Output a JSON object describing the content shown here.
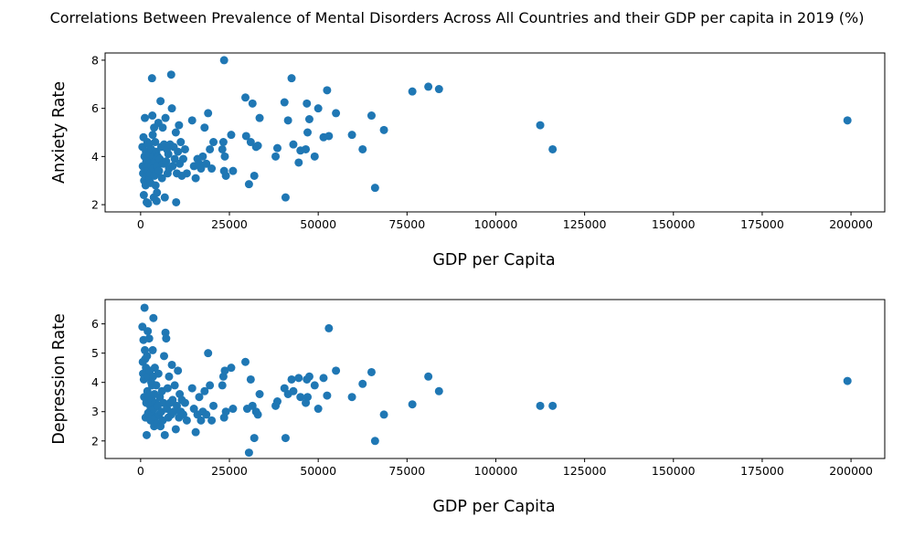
{
  "title": "Correlations Between Prevalence of Mental Disorders Across All Countries and their GDP per capita in 2019 (%)",
  "colors": {
    "marker": "#1f77b4",
    "axis": "#000000",
    "background": "#ffffff"
  },
  "chart_data": [
    {
      "type": "scatter",
      "xlabel": "GDP per Capita",
      "ylabel": "Anxiety Rate",
      "xlim": [
        -10000,
        209500
      ],
      "ylim": [
        1.7,
        8.3
      ],
      "xticks": [
        0,
        25000,
        50000,
        75000,
        100000,
        125000,
        150000,
        175000,
        200000
      ],
      "yticks": [
        2,
        4,
        6,
        8
      ],
      "grid": false,
      "legend": "none",
      "series": [
        {
          "points": [
            [
              500,
              4.4
            ],
            [
              600,
              3.6
            ],
            [
              700,
              3.3
            ],
            [
              800,
              4.8
            ],
            [
              900,
              2.4
            ],
            [
              1000,
              3.0
            ],
            [
              1100,
              4.0
            ],
            [
              1200,
              5.6
            ],
            [
              1300,
              3.5
            ],
            [
              1400,
              2.8
            ],
            [
              1500,
              4.2
            ],
            [
              1600,
              3.8
            ],
            [
              1700,
              2.1
            ],
            [
              1800,
              3.2
            ],
            [
              1900,
              4.6
            ],
            [
              2000,
              3.9
            ],
            [
              2100,
              2.05
            ],
            [
              2200,
              3.4
            ],
            [
              2300,
              4.5
            ],
            [
              2400,
              3.7
            ],
            [
              2500,
              3.1
            ],
            [
              2600,
              4.1
            ],
            [
              2700,
              3.3
            ],
            [
              2800,
              2.9
            ],
            [
              3000,
              4.3
            ],
            [
              3100,
              3.6
            ],
            [
              3200,
              7.25
            ],
            [
              3300,
              5.7
            ],
            [
              3400,
              4.9
            ],
            [
              3500,
              3.5
            ],
            [
              3600,
              4.0
            ],
            [
              3700,
              2.3
            ],
            [
              3800,
              5.2
            ],
            [
              3900,
              3.2
            ],
            [
              4000,
              3.8
            ],
            [
              4100,
              4.6
            ],
            [
              4200,
              2.8
            ],
            [
              4300,
              3.3
            ],
            [
              4400,
              4.2
            ],
            [
              4500,
              2.15
            ],
            [
              4600,
              2.5
            ],
            [
              4700,
              3.6
            ],
            [
              4800,
              4.0
            ],
            [
              5000,
              5.4
            ],
            [
              5200,
              3.4
            ],
            [
              5400,
              3.9
            ],
            [
              5600,
              6.3
            ],
            [
              5800,
              4.4
            ],
            [
              6000,
              3.1
            ],
            [
              6200,
              5.2
            ],
            [
              6400,
              3.7
            ],
            [
              6600,
              4.5
            ],
            [
              6800,
              2.3
            ],
            [
              7000,
              5.6
            ],
            [
              7200,
              3.8
            ],
            [
              7400,
              4.3
            ],
            [
              7600,
              3.3
            ],
            [
              7800,
              4.1
            ],
            [
              8000,
              3.5
            ],
            [
              8300,
              4.5
            ],
            [
              8600,
              7.4
            ],
            [
              8800,
              6.0
            ],
            [
              9000,
              3.6
            ],
            [
              9300,
              4.4
            ],
            [
              9600,
              3.9
            ],
            [
              9900,
              5.0
            ],
            [
              10000,
              2.1
            ],
            [
              10200,
              3.3
            ],
            [
              10500,
              4.2
            ],
            [
              10800,
              5.3
            ],
            [
              11000,
              3.7
            ],
            [
              11300,
              4.6
            ],
            [
              11600,
              3.2
            ],
            [
              12000,
              3.9
            ],
            [
              12500,
              4.3
            ],
            [
              13000,
              3.3
            ],
            [
              14500,
              5.5
            ],
            [
              15000,
              3.6
            ],
            [
              15500,
              3.1
            ],
            [
              16000,
              3.9
            ],
            [
              16500,
              3.7
            ],
            [
              17000,
              3.5
            ],
            [
              17500,
              4.0
            ],
            [
              18000,
              5.2
            ],
            [
              18500,
              3.7
            ],
            [
              19000,
              5.8
            ],
            [
              19500,
              4.3
            ],
            [
              20000,
              3.5
            ],
            [
              20500,
              4.6
            ],
            [
              23000,
              4.3
            ],
            [
              23300,
              4.6
            ],
            [
              23500,
              3.4
            ],
            [
              23700,
              4.0
            ],
            [
              23500,
              8.0
            ],
            [
              24000,
              3.2
            ],
            [
              25500,
              4.9
            ],
            [
              26000,
              3.4
            ],
            [
              29500,
              6.45
            ],
            [
              29700,
              4.85
            ],
            [
              30500,
              2.85
            ],
            [
              31000,
              4.6
            ],
            [
              31500,
              6.2
            ],
            [
              32000,
              3.2
            ],
            [
              32500,
              4.4
            ],
            [
              33000,
              4.45
            ],
            [
              33500,
              5.6
            ],
            [
              38000,
              4.0
            ],
            [
              38500,
              4.35
            ],
            [
              40500,
              6.25
            ],
            [
              40800,
              2.3
            ],
            [
              41500,
              5.5
            ],
            [
              42500,
              7.25
            ],
            [
              43000,
              4.5
            ],
            [
              44500,
              3.75
            ],
            [
              45000,
              4.25
            ],
            [
              46500,
              4.3
            ],
            [
              46800,
              6.2
            ],
            [
              47000,
              5.0
            ],
            [
              47500,
              5.55
            ],
            [
              49000,
              4.0
            ],
            [
              50000,
              6.0
            ],
            [
              51500,
              4.8
            ],
            [
              52500,
              6.75
            ],
            [
              53000,
              4.85
            ],
            [
              55000,
              5.8
            ],
            [
              59500,
              4.9
            ],
            [
              62500,
              4.3
            ],
            [
              65000,
              5.7
            ],
            [
              66000,
              2.7
            ],
            [
              68500,
              5.1
            ],
            [
              76500,
              6.7
            ],
            [
              81000,
              6.9
            ],
            [
              84000,
              6.8
            ],
            [
              112500,
              5.3
            ],
            [
              116000,
              4.3
            ],
            [
              199000,
              5.5
            ]
          ]
        }
      ]
    },
    {
      "type": "scatter",
      "xlabel": "GDP per Capita",
      "ylabel": "Depression Rate",
      "xlim": [
        -10000,
        209500
      ],
      "ylim": [
        1.4,
        6.83
      ],
      "xticks": [
        0,
        25000,
        50000,
        75000,
        100000,
        125000,
        150000,
        175000,
        200000
      ],
      "yticks": [
        2,
        3,
        4,
        5,
        6
      ],
      "grid": false,
      "legend": "none",
      "series": [
        {
          "points": [
            [
              500,
              5.9
            ],
            [
              600,
              4.7
            ],
            [
              700,
              4.3
            ],
            [
              800,
              5.45
            ],
            [
              900,
              4.1
            ],
            [
              1000,
              3.5
            ],
            [
              1100,
              6.55
            ],
            [
              1200,
              5.1
            ],
            [
              1300,
              4.8
            ],
            [
              1400,
              2.8
            ],
            [
              1500,
              4.5
            ],
            [
              1600,
              3.3
            ],
            [
              1700,
              2.2
            ],
            [
              1800,
              4.9
            ],
            [
              1900,
              3.7
            ],
            [
              2000,
              5.75
            ],
            [
              2100,
              2.95
            ],
            [
              2200,
              4.2
            ],
            [
              2300,
              3.5
            ],
            [
              2400,
              5.5
            ],
            [
              2500,
              3.0
            ],
            [
              2600,
              4.4
            ],
            [
              2700,
              3.2
            ],
            [
              2800,
              2.7
            ],
            [
              3000,
              4.0
            ],
            [
              3100,
              3.4
            ],
            [
              3200,
              3.9
            ],
            [
              3300,
              2.9
            ],
            [
              3400,
              5.1
            ],
            [
              3500,
              4.2
            ],
            [
              3600,
              6.2
            ],
            [
              3700,
              3.1
            ],
            [
              3800,
              2.5
            ],
            [
              3900,
              3.6
            ],
            [
              4000,
              4.5
            ],
            [
              4100,
              2.8
            ],
            [
              4200,
              3.3
            ],
            [
              4400,
              3.9
            ],
            [
              4600,
              2.6
            ],
            [
              4800,
              3.2
            ],
            [
              5000,
              4.3
            ],
            [
              5200,
              2.9
            ],
            [
              5400,
              3.5
            ],
            [
              5600,
              2.5
            ],
            [
              5800,
              3.0
            ],
            [
              6000,
              3.7
            ],
            [
              6200,
              2.7
            ],
            [
              6400,
              3.3
            ],
            [
              6600,
              4.9
            ],
            [
              6800,
              2.2
            ],
            [
              7000,
              5.7
            ],
            [
              7200,
              5.5
            ],
            [
              7400,
              3.1
            ],
            [
              7600,
              3.8
            ],
            [
              7800,
              2.8
            ],
            [
              8000,
              4.2
            ],
            [
              8300,
              3.3
            ],
            [
              8600,
              2.9
            ],
            [
              8800,
              4.6
            ],
            [
              9000,
              3.4
            ],
            [
              9300,
              3.0
            ],
            [
              9600,
              3.9
            ],
            [
              9900,
              2.4
            ],
            [
              10200,
              3.2
            ],
            [
              10500,
              4.4
            ],
            [
              10800,
              2.8
            ],
            [
              11000,
              3.6
            ],
            [
              11300,
              3.0
            ],
            [
              11600,
              3.4
            ],
            [
              12000,
              2.9
            ],
            [
              12500,
              3.3
            ],
            [
              13000,
              2.7
            ],
            [
              14500,
              3.8
            ],
            [
              15000,
              3.1
            ],
            [
              15500,
              2.3
            ],
            [
              16000,
              2.9
            ],
            [
              16500,
              3.5
            ],
            [
              17000,
              2.7
            ],
            [
              17500,
              3.0
            ],
            [
              18000,
              3.7
            ],
            [
              18500,
              2.9
            ],
            [
              19000,
              5.0
            ],
            [
              19500,
              3.9
            ],
            [
              20000,
              2.7
            ],
            [
              20500,
              3.2
            ],
            [
              23000,
              3.9
            ],
            [
              23300,
              4.2
            ],
            [
              23500,
              2.8
            ],
            [
              23700,
              4.4
            ],
            [
              24000,
              3.0
            ],
            [
              25500,
              4.5
            ],
            [
              26000,
              3.1
            ],
            [
              29500,
              4.7
            ],
            [
              30000,
              3.1
            ],
            [
              30500,
              1.6
            ],
            [
              31000,
              4.1
            ],
            [
              31500,
              3.2
            ],
            [
              32000,
              2.1
            ],
            [
              32500,
              3.0
            ],
            [
              33000,
              2.9
            ],
            [
              33500,
              3.6
            ],
            [
              38000,
              3.2
            ],
            [
              38500,
              3.35
            ],
            [
              40500,
              3.8
            ],
            [
              40800,
              2.1
            ],
            [
              41500,
              3.6
            ],
            [
              42500,
              4.1
            ],
            [
              43000,
              3.7
            ],
            [
              44500,
              4.15
            ],
            [
              45000,
              3.5
            ],
            [
              46500,
              3.3
            ],
            [
              46800,
              4.1
            ],
            [
              47000,
              3.5
            ],
            [
              47500,
              4.2
            ],
            [
              49000,
              3.9
            ],
            [
              50000,
              3.1
            ],
            [
              51500,
              4.15
            ],
            [
              52500,
              3.55
            ],
            [
              53000,
              5.85
            ],
            [
              55000,
              4.4
            ],
            [
              59500,
              3.5
            ],
            [
              62500,
              3.95
            ],
            [
              65000,
              4.35
            ],
            [
              66000,
              2.0
            ],
            [
              68500,
              2.9
            ],
            [
              76500,
              3.25
            ],
            [
              81000,
              4.2
            ],
            [
              84000,
              3.7
            ],
            [
              112500,
              3.2
            ],
            [
              116000,
              3.2
            ],
            [
              199000,
              4.05
            ]
          ]
        }
      ]
    }
  ]
}
